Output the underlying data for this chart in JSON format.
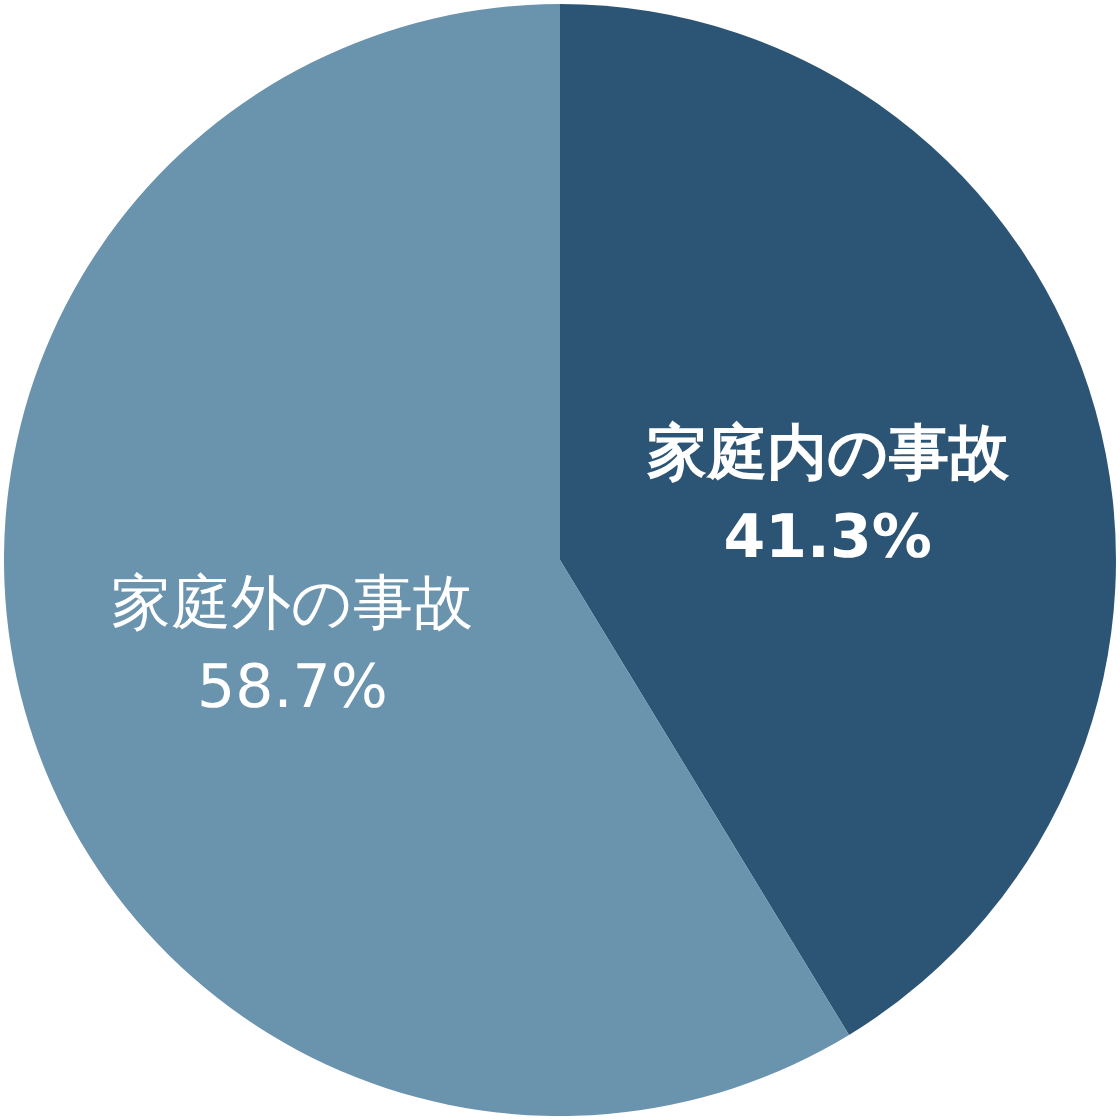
{
  "chart_data": {
    "type": "pie",
    "categories": [
      "家庭内の事故",
      "家庭外の事故"
    ],
    "values": [
      41.3,
      58.7
    ],
    "colors": [
      "#2c5474",
      "#6a93ad"
    ],
    "value_labels": [
      "41.3%",
      "58.7%"
    ]
  }
}
